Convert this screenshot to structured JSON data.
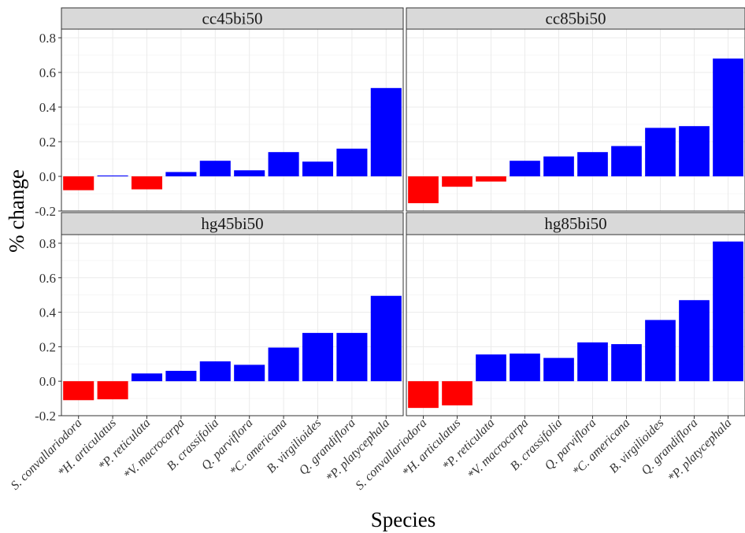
{
  "chart_data": {
    "type": "bar",
    "facet_layout": "2x2",
    "xlabel": "Species",
    "ylabel": "% change",
    "ylim": [
      -0.2,
      0.85
    ],
    "yticks": [
      -0.2,
      0.0,
      0.2,
      0.4,
      0.6,
      0.8
    ],
    "ytick_labels": [
      "-0.2",
      "0.0",
      "0.2",
      "0.4",
      "0.6",
      "0.8"
    ],
    "grid": true,
    "legend": "none",
    "colors": {
      "positive": "#0000ff",
      "negative": "#ff0000",
      "panel_bg": "#ffffff",
      "grid": "#ebebeb",
      "strip": "#d9d9d9",
      "border": "#333333"
    },
    "categories": [
      "S. convallariodora",
      "*H. articulatus",
      "*P. reticulata",
      "*V. macrocarpa",
      "B. crassifolia",
      "Q. parviflora",
      "*C. americana",
      "B. virgilioides",
      "Q. grandiflora",
      "*P. platycephala"
    ],
    "panels": [
      {
        "title": "cc45bi50",
        "values": [
          -0.08,
          0.005,
          -0.075,
          0.025,
          0.09,
          0.035,
          0.14,
          0.085,
          0.16,
          0.51
        ]
      },
      {
        "title": "cc85bi50",
        "values": [
          -0.155,
          -0.06,
          -0.03,
          0.09,
          0.115,
          0.14,
          0.175,
          0.28,
          0.29,
          0.68
        ]
      },
      {
        "title": "hg45bi50",
        "values": [
          -0.11,
          -0.105,
          0.045,
          0.06,
          0.115,
          0.095,
          0.195,
          0.28,
          0.28,
          0.495
        ]
      },
      {
        "title": "hg85bi50",
        "values": [
          -0.155,
          -0.14,
          0.155,
          0.16,
          0.135,
          0.225,
          0.215,
          0.355,
          0.47,
          0.81
        ]
      }
    ]
  }
}
